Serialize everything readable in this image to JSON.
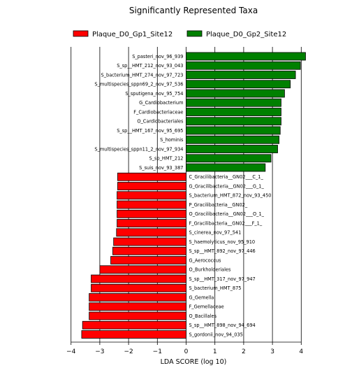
{
  "chart_data": {
    "type": "bar",
    "orientation": "horizontal",
    "title": "Significantly Represented Taxa",
    "xlabel": "LDA SCORE (log 10)",
    "ylabel": "",
    "xlim": [
      -4,
      4.3
    ],
    "xticks": [
      -4,
      -3,
      -2,
      -1,
      0,
      1,
      2,
      3,
      4
    ],
    "grid": "vertical lines at integer ticks",
    "legend_position": "top",
    "series": [
      {
        "name": "Plaque_D0_Gp1_Site12",
        "color": "#ff0000"
      },
      {
        "name": "Plaque_D0_Gp2_Site12",
        "color": "#008000"
      }
    ],
    "bars": [
      {
        "label": "S_pasteri_nov_96_939",
        "value": 4.15,
        "group": 1
      },
      {
        "label": "S_sp__HMT_212_nov_93_043",
        "value": 3.97,
        "group": 1
      },
      {
        "label": "S_bacterium_HMT_274_nov_97_723",
        "value": 3.8,
        "group": 1
      },
      {
        "label": "S_multispecies_sppn69_2_nov_97_536",
        "value": 3.62,
        "group": 1
      },
      {
        "label": "S_sputigena_nov_95_754",
        "value": 3.42,
        "group": 1
      },
      {
        "label": "G_Cardiobacterium",
        "value": 3.3,
        "group": 1
      },
      {
        "label": "F_Cardiobacteriaceae",
        "value": 3.3,
        "group": 1
      },
      {
        "label": "O_Cardiobacteriales",
        "value": 3.3,
        "group": 1
      },
      {
        "label": "S_sp__HMT_167_nov_95_695",
        "value": 3.27,
        "group": 1
      },
      {
        "label": "S_hominis",
        "value": 3.23,
        "group": 1
      },
      {
        "label": "S_multispecies_sppn11_2_nov_97_934",
        "value": 3.18,
        "group": 1
      },
      {
        "label": "S_sp_HMT_212",
        "value": 2.95,
        "group": 1
      },
      {
        "label": "S_suis_nov_93_387",
        "value": 2.75,
        "group": 1
      },
      {
        "label": "C_Gracilibacteria__GN02___C_1_",
        "value": -2.38,
        "group": 0
      },
      {
        "label": "G_Gracilibacteria__GN02___G_1_",
        "value": -2.38,
        "group": 0
      },
      {
        "label": "S_bacterium_HMT_872_nov_93_450",
        "value": -2.4,
        "group": 0
      },
      {
        "label": "P_Gracilibacteria__GN02_",
        "value": -2.4,
        "group": 0
      },
      {
        "label": "O_Gracilibacteria__GN02___O_1_",
        "value": -2.4,
        "group": 0
      },
      {
        "label": "F_Gracilibacteria__GN02___F_1_",
        "value": -2.4,
        "group": 0
      },
      {
        "label": "S_cinerea_nov_97_541",
        "value": -2.42,
        "group": 0
      },
      {
        "label": "S_haemolyticus_nov_95_910",
        "value": -2.52,
        "group": 0
      },
      {
        "label": "S_sp__HMT_892_nov_97_446",
        "value": -2.55,
        "group": 0
      },
      {
        "label": "G_Aerococcus",
        "value": -2.62,
        "group": 0
      },
      {
        "label": "O_Burkholderiales",
        "value": -3.0,
        "group": 0
      },
      {
        "label": "S_sp__HMT_317_nov_97_947",
        "value": -3.3,
        "group": 0
      },
      {
        "label": "S_bacterium_HMT_875",
        "value": -3.3,
        "group": 0
      },
      {
        "label": "G_Gemella",
        "value": -3.37,
        "group": 0
      },
      {
        "label": "F_Gemellaceae",
        "value": -3.37,
        "group": 0
      },
      {
        "label": "O_Bacillales",
        "value": -3.37,
        "group": 0
      },
      {
        "label": "S_sp__HMT_898_nov_94_694",
        "value": -3.6,
        "group": 0
      },
      {
        "label": "S_gordonii_nov_94_035",
        "value": -3.63,
        "group": 0
      }
    ]
  }
}
